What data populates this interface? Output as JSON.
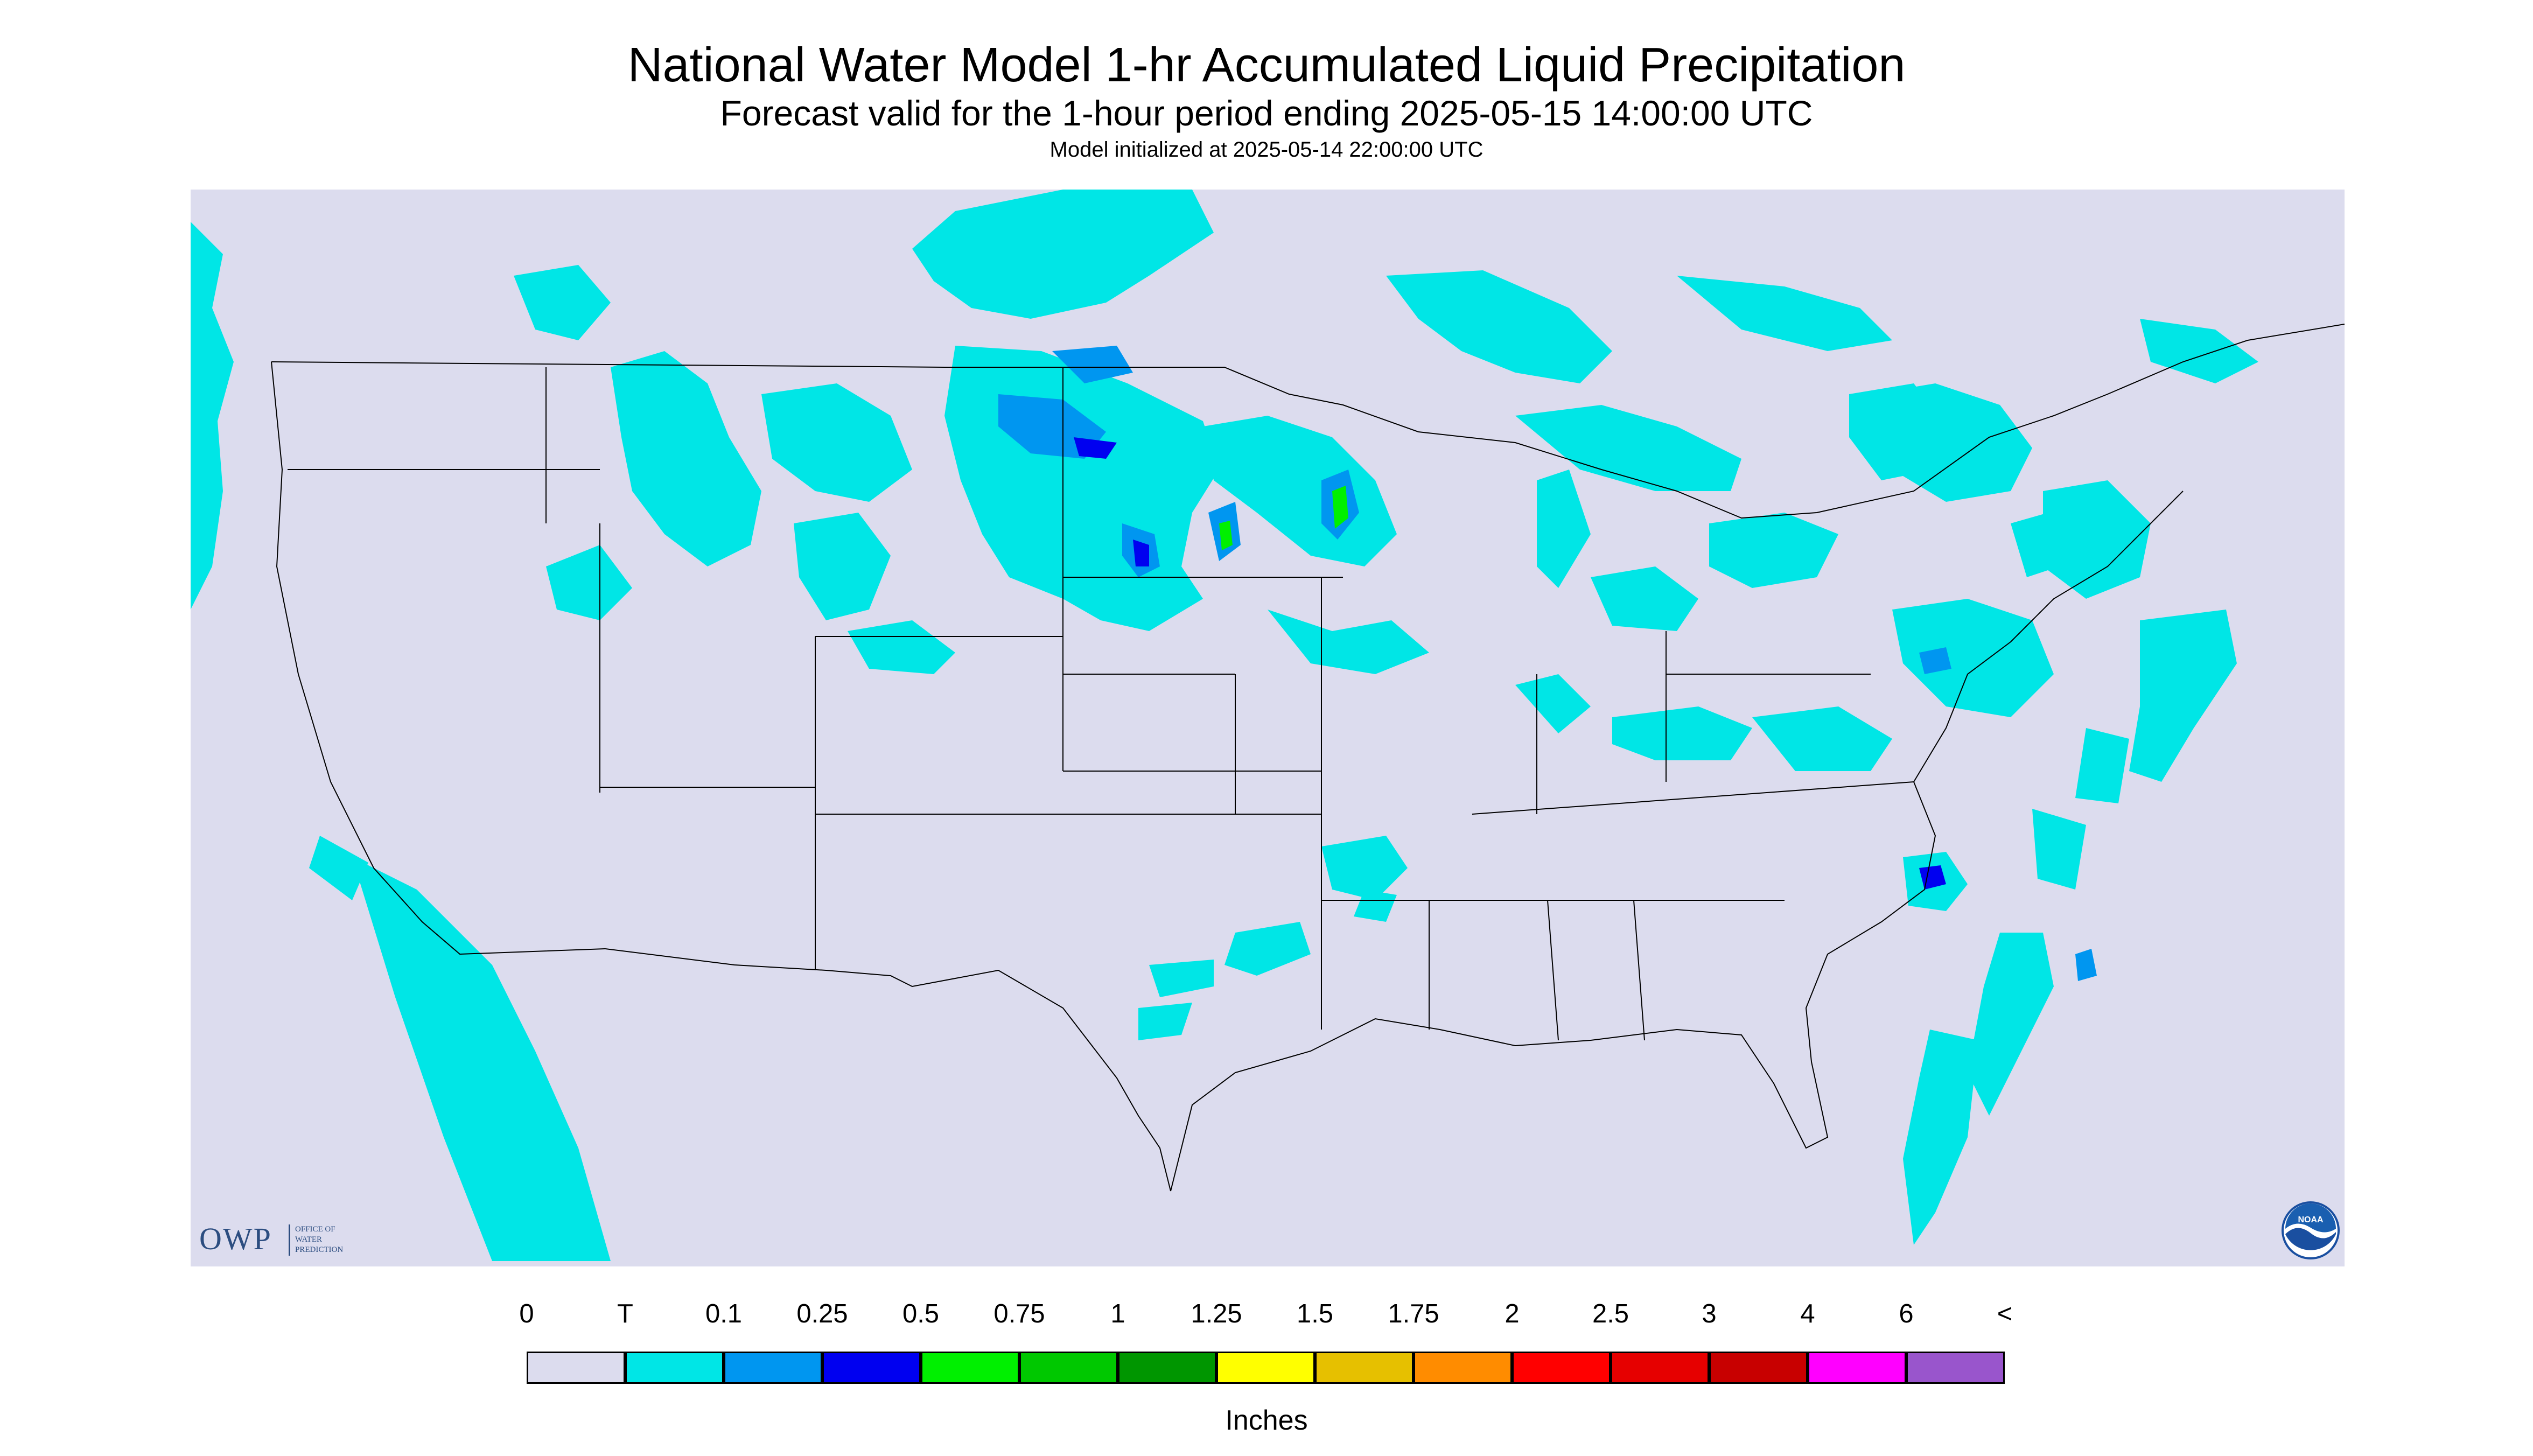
{
  "header": {
    "title": "National Water Model 1-hr Accumulated Liquid Precipitation",
    "subtitle": "Forecast valid for the 1-hour period ending 2025-05-15 14:00:00 UTC",
    "init": "Model initialized at 2025-05-14 22:00:00 UTC"
  },
  "map": {
    "background_color": "#dcdcee",
    "land_color": "#dcdcee",
    "boundary_color": "#000000"
  },
  "legend": {
    "units": "Inches",
    "labels": [
      "0",
      "T",
      "0.1",
      "0.25",
      "0.5",
      "0.75",
      "1",
      "1.25",
      "1.5",
      "1.75",
      "2",
      "2.5",
      "3",
      "4",
      "6",
      "<"
    ],
    "colors": [
      "#dcdcee",
      "#00e6e6",
      "#0096f0",
      "#0000f0",
      "#00f000",
      "#00c800",
      "#009600",
      "#ffff00",
      "#e6c000",
      "#ff8c00",
      "#ff0000",
      "#e60000",
      "#c80000",
      "#ff00ff",
      "#9955cc"
    ]
  },
  "logos": {
    "owp_letters": "OWP",
    "owp_line1": "OFFICE OF",
    "owp_line2": "WATER",
    "owp_line3": "PREDICTION",
    "noaa_text": "NOAA",
    "owp_color": "#2c4d80",
    "noaa_color": "#1a4fa0"
  }
}
